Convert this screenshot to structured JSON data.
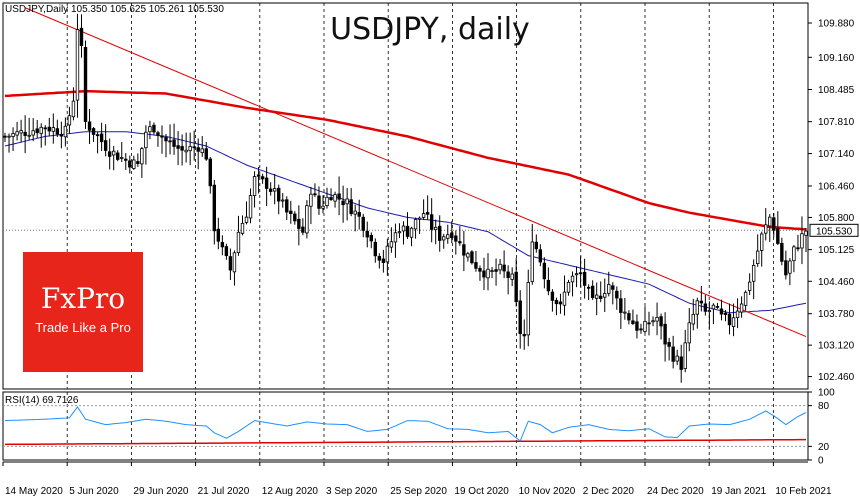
{
  "header": {
    "symbol": "USDJPY,Daily",
    "ohlc": "105.350 105.625 105.261 105.530"
  },
  "title": "USDJPY, daily",
  "logo": {
    "brand": "FxPro",
    "slogan": "Trade Like a Pro"
  },
  "rsi_label": "RSI(14) 69.7126",
  "colors": {
    "candle": "#000000",
    "ma_long": "#e00000",
    "ma_short": "#1a1ab0",
    "trendline": "#e00000",
    "rsi_line": "#1e90ff",
    "rsi_ma": "#e00000",
    "logo_bg": "#e8251a",
    "price_tag_bg": "#ffffff"
  },
  "chart_data": [
    {
      "type": "candlestick",
      "title": "USDJPY, daily",
      "ylim": [
        102.2,
        110.3
      ],
      "price_ticks": [
        "109.880",
        "109.160",
        "108.485",
        "107.810",
        "107.140",
        "106.460",
        "105.800",
        "105.125",
        "104.460",
        "103.780",
        "103.120",
        "102.460"
      ],
      "current_price": "105.530",
      "x_labels": [
        "14 May 2020",
        "5 Jun 2020",
        "29 Jun 2020",
        "21 Jul 2020",
        "12 Aug 2020",
        "3 Sep 2020",
        "25 Sep 2020",
        "19 Oct 2020",
        "10 Nov 2020",
        "2 Dec 2020",
        "24 Dec 2020",
        "19 Jan 2021",
        "10 Feb 2021"
      ],
      "close_anchors": [
        [
          0,
          107.5
        ],
        [
          5,
          107.6
        ],
        [
          10,
          107.7
        ],
        [
          15,
          107.6
        ],
        [
          17,
          108.3
        ],
        [
          18,
          109.8
        ],
        [
          19,
          109.3
        ],
        [
          20,
          107.8
        ],
        [
          22,
          107.6
        ],
        [
          26,
          107.2
        ],
        [
          30,
          107.0
        ],
        [
          33,
          106.9
        ],
        [
          35,
          107.6
        ],
        [
          37,
          107.7
        ],
        [
          40,
          107.4
        ],
        [
          44,
          107.2
        ],
        [
          48,
          107.3
        ],
        [
          50,
          107.1
        ],
        [
          52,
          105.6
        ],
        [
          54,
          105.1
        ],
        [
          56,
          104.7
        ],
        [
          58,
          105.5
        ],
        [
          60,
          105.9
        ],
        [
          62,
          106.6
        ],
        [
          65,
          106.5
        ],
        [
          68,
          106.2
        ],
        [
          70,
          105.9
        ],
        [
          72,
          105.7
        ],
        [
          74,
          105.5
        ],
        [
          76,
          106.4
        ],
        [
          78,
          106.0
        ],
        [
          81,
          106.3
        ],
        [
          85,
          106.1
        ],
        [
          88,
          105.8
        ],
        [
          90,
          105.5
        ],
        [
          92,
          105.1
        ],
        [
          94,
          104.9
        ],
        [
          96,
          105.3
        ],
        [
          98,
          105.6
        ],
        [
          100,
          105.5
        ],
        [
          104,
          105.9
        ],
        [
          106,
          105.6
        ],
        [
          108,
          105.4
        ],
        [
          111,
          105.5
        ],
        [
          114,
          105.1
        ],
        [
          117,
          104.8
        ],
        [
          120,
          104.6
        ],
        [
          123,
          104.7
        ],
        [
          126,
          104.5
        ],
        [
          128,
          103.4
        ],
        [
          129,
          103.3
        ],
        [
          131,
          105.4
        ],
        [
          133,
          104.9
        ],
        [
          135,
          104.3
        ],
        [
          138,
          103.9
        ],
        [
          140,
          104.5
        ],
        [
          143,
          104.6
        ],
        [
          146,
          104.0
        ],
        [
          148,
          104.2
        ],
        [
          150,
          104.4
        ],
        [
          153,
          103.9
        ],
        [
          156,
          103.6
        ],
        [
          158,
          103.4
        ],
        [
          160,
          103.6
        ],
        [
          162,
          103.7
        ],
        [
          164,
          103.2
        ],
        [
          166,
          102.9
        ],
        [
          168,
          102.7
        ],
        [
          170,
          103.5
        ],
        [
          172,
          104.0
        ],
        [
          174,
          103.8
        ],
        [
          176,
          103.9
        ],
        [
          178,
          103.7
        ],
        [
          180,
          103.6
        ],
        [
          182,
          103.9
        ],
        [
          184,
          104.2
        ],
        [
          186,
          104.8
        ],
        [
          188,
          105.4
        ],
        [
          190,
          105.8
        ],
        [
          191,
          105.6
        ],
        [
          193,
          104.9
        ],
        [
          194,
          104.6
        ],
        [
          196,
          105.1
        ],
        [
          198,
          105.4
        ],
        [
          199,
          105.53
        ]
      ],
      "ma_long_anchors": [
        [
          0,
          108.35
        ],
        [
          20,
          108.45
        ],
        [
          40,
          108.4
        ],
        [
          60,
          108.1
        ],
        [
          80,
          107.85
        ],
        [
          100,
          107.5
        ],
        [
          120,
          107.05
        ],
        [
          140,
          106.7
        ],
        [
          150,
          106.4
        ],
        [
          160,
          106.1
        ],
        [
          170,
          105.9
        ],
        [
          180,
          105.75
        ],
        [
          190,
          105.6
        ],
        [
          199,
          105.55
        ]
      ],
      "ma_short_anchors": [
        [
          0,
          107.3
        ],
        [
          10,
          107.5
        ],
        [
          20,
          107.6
        ],
        [
          30,
          107.6
        ],
        [
          40,
          107.5
        ],
        [
          50,
          107.3
        ],
        [
          60,
          106.9
        ],
        [
          70,
          106.6
        ],
        [
          80,
          106.3
        ],
        [
          90,
          106.0
        ],
        [
          100,
          105.8
        ],
        [
          110,
          105.7
        ],
        [
          120,
          105.5
        ],
        [
          130,
          105.0
        ],
        [
          140,
          104.8
        ],
        [
          150,
          104.6
        ],
        [
          160,
          104.4
        ],
        [
          170,
          104.0
        ],
        [
          180,
          103.8
        ],
        [
          190,
          103.85
        ],
        [
          199,
          104.0
        ]
      ],
      "trendline": [
        [
          5,
          110.2
        ],
        [
          199,
          103.3
        ]
      ]
    },
    {
      "type": "line",
      "title": "RSI(14) 69.7126",
      "ylim": [
        0,
        100
      ],
      "y_ticks": [
        "100",
        "80",
        "20",
        "0"
      ],
      "levels": [
        80,
        20
      ],
      "rsi_anchors": [
        [
          0,
          58
        ],
        [
          10,
          60
        ],
        [
          16,
          62
        ],
        [
          18,
          78
        ],
        [
          20,
          60
        ],
        [
          25,
          52
        ],
        [
          30,
          55
        ],
        [
          35,
          60
        ],
        [
          40,
          57
        ],
        [
          45,
          52
        ],
        [
          50,
          50
        ],
        [
          52,
          40
        ],
        [
          55,
          32
        ],
        [
          58,
          42
        ],
        [
          62,
          58
        ],
        [
          65,
          55
        ],
        [
          70,
          50
        ],
        [
          75,
          56
        ],
        [
          80,
          53
        ],
        [
          85,
          52
        ],
        [
          90,
          42
        ],
        [
          95,
          45
        ],
        [
          100,
          58
        ],
        [
          105,
          57
        ],
        [
          110,
          46
        ],
        [
          115,
          45
        ],
        [
          120,
          40
        ],
        [
          125,
          42
        ],
        [
          128,
          28
        ],
        [
          130,
          57
        ],
        [
          133,
          52
        ],
        [
          136,
          40
        ],
        [
          140,
          48
        ],
        [
          145,
          52
        ],
        [
          150,
          45
        ],
        [
          155,
          43
        ],
        [
          160,
          46
        ],
        [
          164,
          34
        ],
        [
          167,
          33
        ],
        [
          170,
          50
        ],
        [
          175,
          53
        ],
        [
          180,
          52
        ],
        [
          185,
          60
        ],
        [
          189,
          72
        ],
        [
          191,
          65
        ],
        [
          194,
          52
        ],
        [
          197,
          64
        ],
        [
          199,
          69.7
        ]
      ],
      "rsi_ma_anchors": [
        [
          0,
          23
        ],
        [
          199,
          30
        ]
      ]
    }
  ]
}
